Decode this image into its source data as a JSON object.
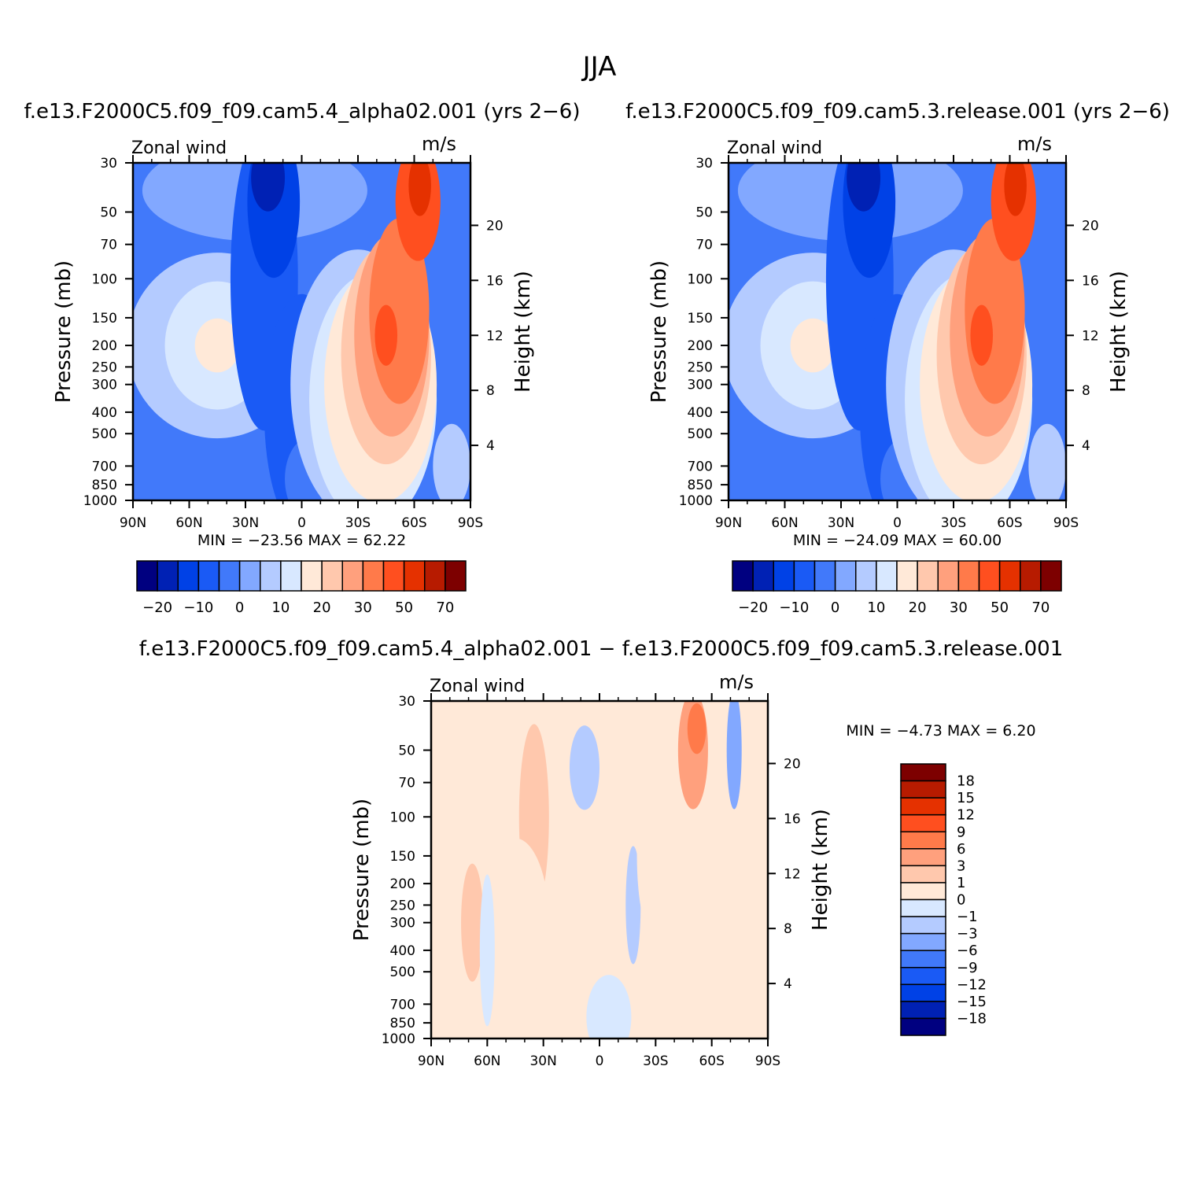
{
  "figure": {
    "title": "JJA"
  },
  "chart_data": [
    {
      "type": "contour",
      "title": "f.e13.F2000C5.f09_f09.cam5.4_alpha02.001 (yrs 2−6)",
      "variable_label": "Zonal wind",
      "units": "m/s",
      "ylabel": "Pressure (mb)",
      "ylabel_right": "Height (km)",
      "x_ticks": [
        "90N",
        "60N",
        "30N",
        "0",
        "30S",
        "60S",
        "90S"
      ],
      "x_range": [
        90,
        -90
      ],
      "y_ticks": [
        "30",
        "50",
        "70",
        "100",
        "150",
        "200",
        "250",
        "300",
        "400",
        "500",
        "700",
        "850",
        "1000"
      ],
      "y_range": [
        30,
        1000
      ],
      "y_scale": "log",
      "height_ticks": [
        "20",
        "16",
        "12",
        "8",
        "4"
      ],
      "stats_text": "MIN = −23.56   MAX =   62.22",
      "min": -23.56,
      "max": 62.22,
      "colorbar": {
        "orientation": "horizontal",
        "colors": [
          "#000080",
          "#0021b4",
          "#0041e6",
          "#1a5af5",
          "#4179fa",
          "#82a8ff",
          "#b4cbff",
          "#d8e8ff",
          "#ffe9d8",
          "#ffc8ad",
          "#ffa07d",
          "#ff7a4a",
          "#ff4f1f",
          "#e53100",
          "#b71b00",
          "#7d0000"
        ],
        "labels": [
          "−20",
          "−10",
          "0",
          "10",
          "20",
          "30",
          "50",
          "70"
        ]
      }
    },
    {
      "type": "contour",
      "title": "f.e13.F2000C5.f09_f09.cam5.3.release.001 (yrs 2−6)",
      "variable_label": "Zonal wind",
      "units": "m/s",
      "ylabel": "Pressure (mb)",
      "ylabel_right": "Height (km)",
      "x_ticks": [
        "90N",
        "60N",
        "30N",
        "0",
        "30S",
        "60S",
        "90S"
      ],
      "x_range": [
        90,
        -90
      ],
      "y_ticks": [
        "30",
        "50",
        "70",
        "100",
        "150",
        "200",
        "250",
        "300",
        "400",
        "500",
        "700",
        "850",
        "1000"
      ],
      "y_range": [
        30,
        1000
      ],
      "y_scale": "log",
      "height_ticks": [
        "20",
        "16",
        "12",
        "8",
        "4"
      ],
      "stats_text": "MIN = −24.09   MAX =   60.00",
      "min": -24.09,
      "max": 60.0,
      "colorbar": {
        "orientation": "horizontal",
        "colors": [
          "#000080",
          "#0021b4",
          "#0041e6",
          "#1a5af5",
          "#4179fa",
          "#82a8ff",
          "#b4cbff",
          "#d8e8ff",
          "#ffe9d8",
          "#ffc8ad",
          "#ffa07d",
          "#ff7a4a",
          "#ff4f1f",
          "#e53100",
          "#b71b00",
          "#7d0000"
        ],
        "labels": [
          "−20",
          "−10",
          "0",
          "10",
          "20",
          "30",
          "50",
          "70"
        ]
      }
    },
    {
      "type": "contour",
      "title": "f.e13.F2000C5.f09_f09.cam5.4_alpha02.001 − f.e13.F2000C5.f09_f09.cam5.3.release.001",
      "variable_label": "Zonal wind",
      "units": "m/s",
      "ylabel": "Pressure (mb)",
      "ylabel_right": "Height (km)",
      "x_ticks": [
        "90N",
        "60N",
        "30N",
        "0",
        "30S",
        "60S",
        "90S"
      ],
      "x_range": [
        90,
        -90
      ],
      "y_ticks": [
        "30",
        "50",
        "70",
        "100",
        "150",
        "200",
        "250",
        "300",
        "400",
        "500",
        "700",
        "850",
        "1000"
      ],
      "y_range": [
        30,
        1000
      ],
      "y_scale": "log",
      "height_ticks": [
        "20",
        "16",
        "12",
        "8",
        "4"
      ],
      "stats_text": "MIN =   −4.73   MAX =     6.20",
      "min": -4.73,
      "max": 6.2,
      "colorbar": {
        "orientation": "vertical",
        "colors": [
          "#7d0000",
          "#b71b00",
          "#e53100",
          "#ff4f1f",
          "#ff7a4a",
          "#ffa07d",
          "#ffc8ad",
          "#ffe9d8",
          "#d8e8ff",
          "#b4cbff",
          "#82a8ff",
          "#4179fa",
          "#1a5af5",
          "#0041e6",
          "#0021b4",
          "#000080"
        ],
        "labels": [
          "18",
          "15",
          "12",
          "9",
          "6",
          "3",
          "1",
          "0",
          "−1",
          "−3",
          "−6",
          "−9",
          "−12",
          "−15",
          "−18"
        ]
      }
    }
  ]
}
